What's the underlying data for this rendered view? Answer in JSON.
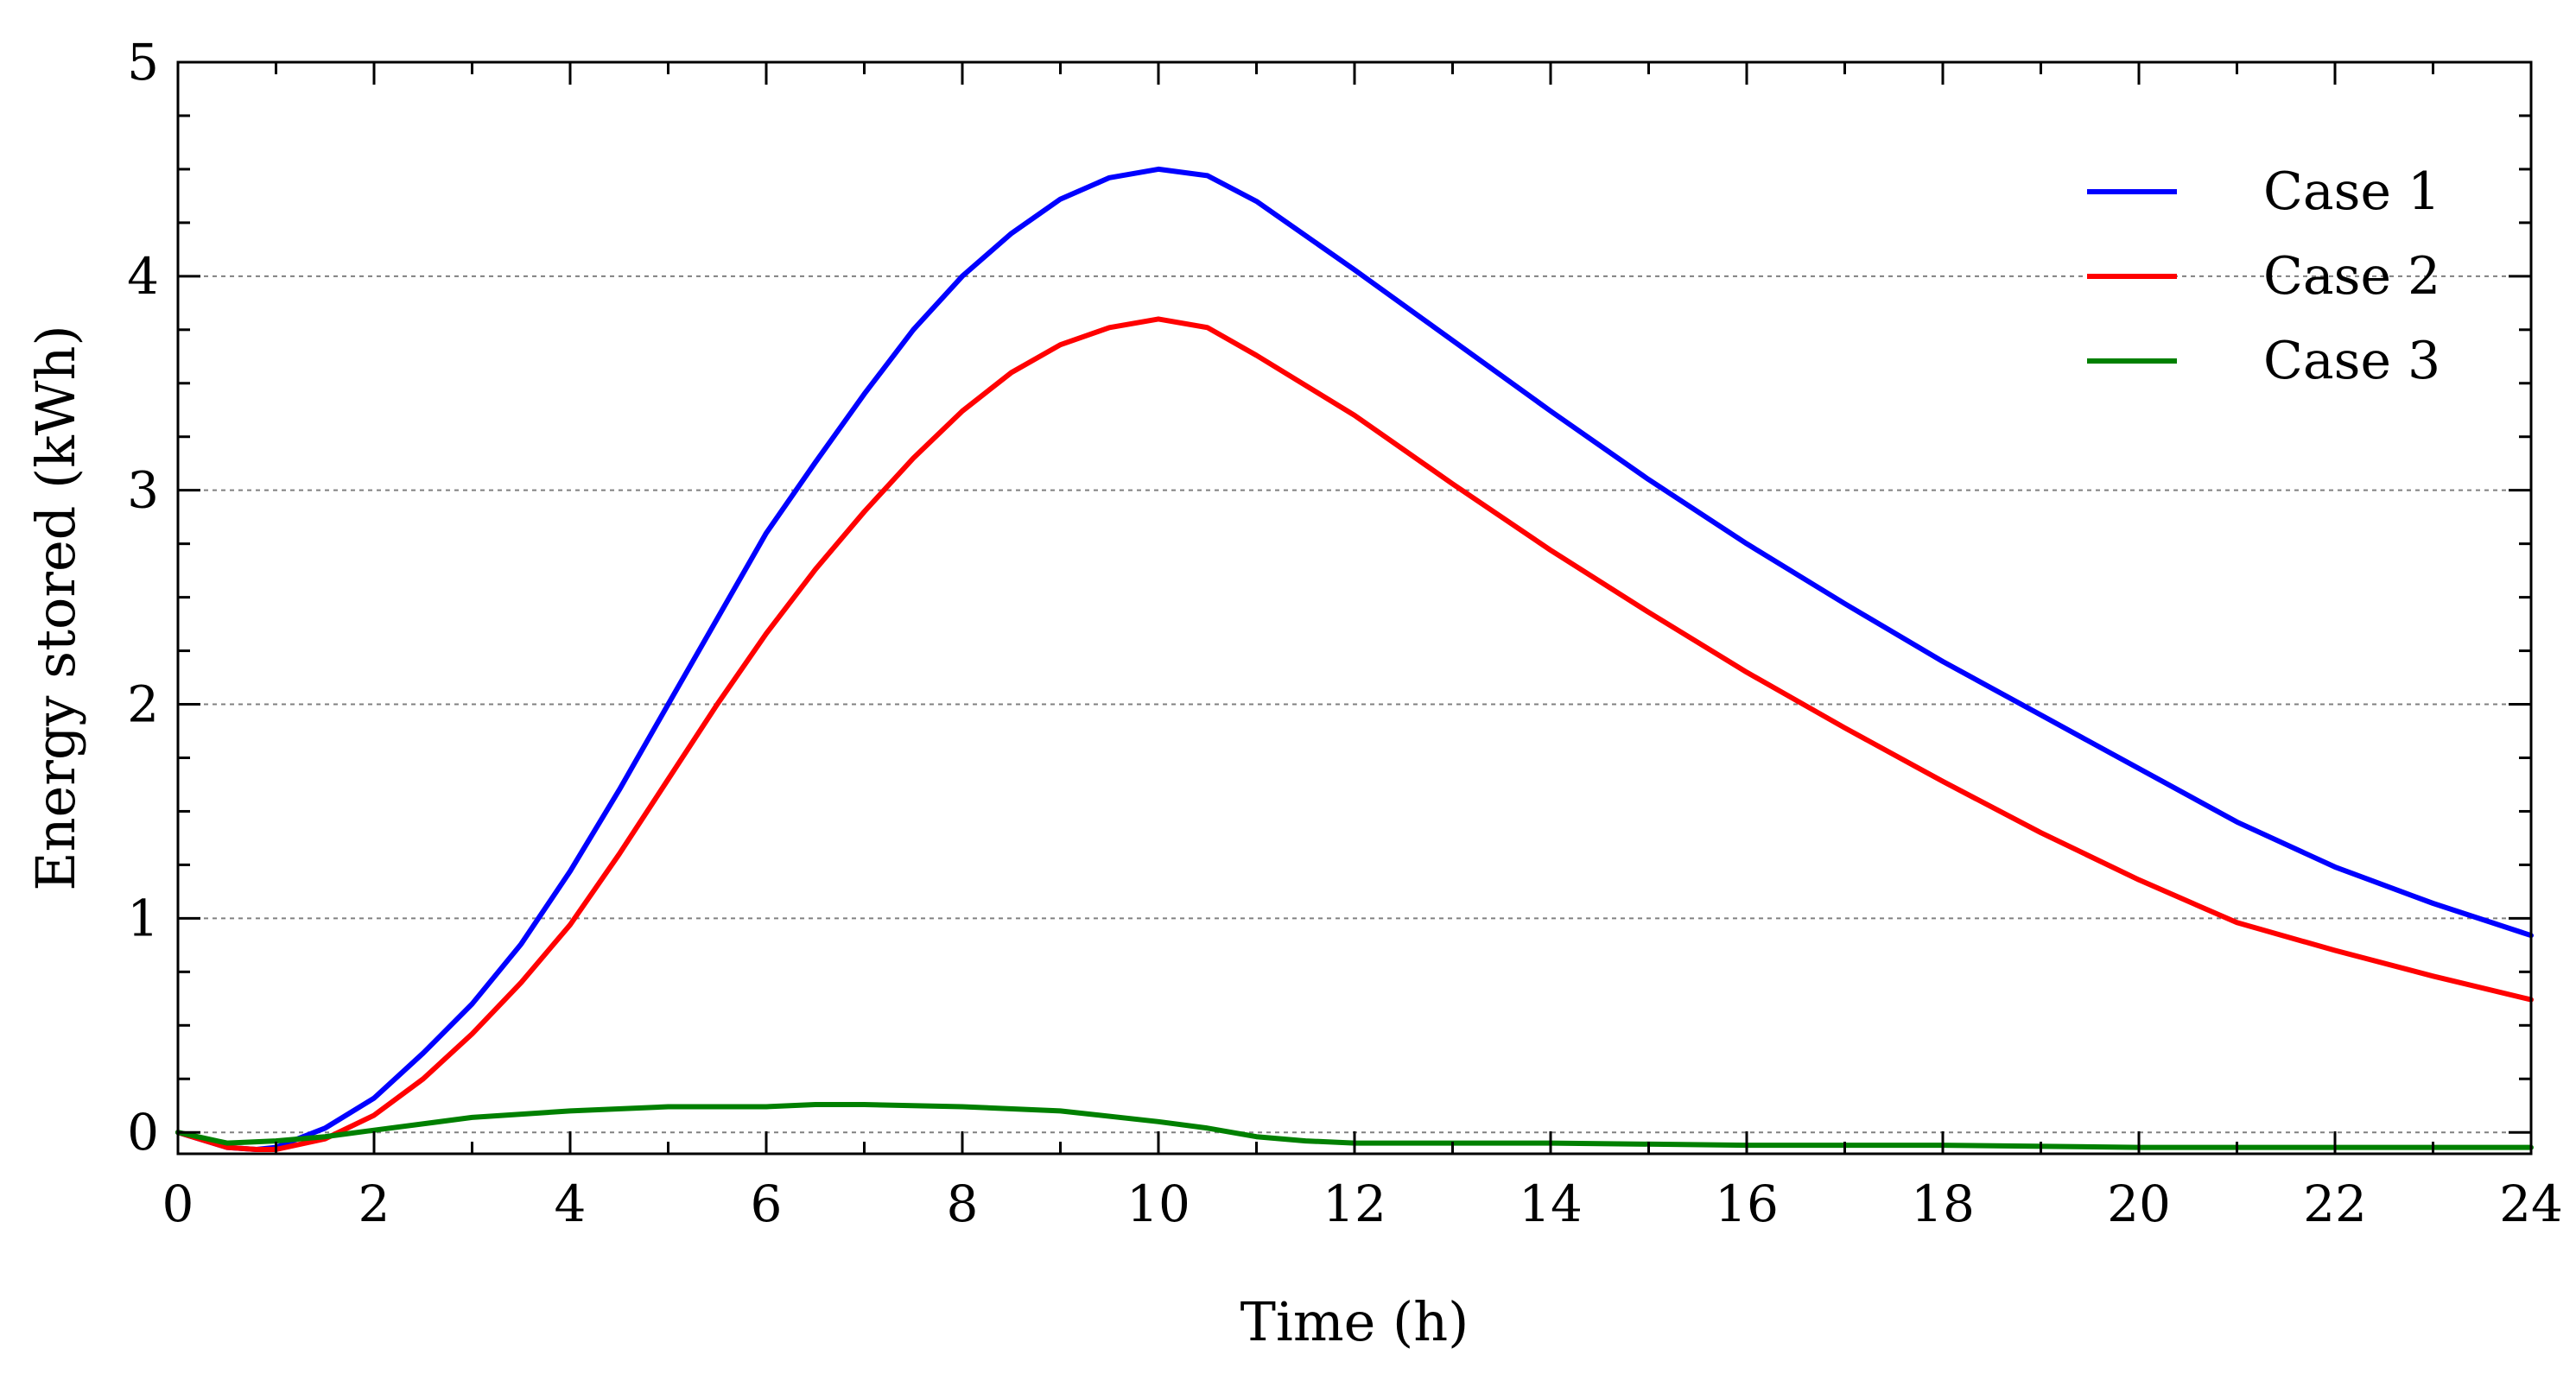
{
  "chart_data": {
    "type": "line",
    "title": "",
    "xlabel": "Time (h)",
    "ylabel": "Energy stored (kWh)",
    "xlim": [
      0,
      24
    ],
    "ylim": [
      -0.1,
      5
    ],
    "xticks": [
      0,
      2,
      4,
      6,
      8,
      10,
      12,
      14,
      16,
      18,
      20,
      22,
      24
    ],
    "yticks": [
      0,
      1,
      2,
      3,
      4,
      5
    ],
    "xtick_labels": [
      "0",
      "2",
      "4",
      "6",
      "8",
      "10",
      "12",
      "14",
      "16",
      "18",
      "20",
      "22",
      "24"
    ],
    "ytick_labels": [
      "0",
      "1",
      "2",
      "3",
      "4",
      "5"
    ],
    "grid": "horizontal dotted",
    "legend_position": "top-right",
    "series": [
      {
        "name": "Case 1",
        "color": "#0000ff",
        "x": [
          0,
          0.5,
          0.8,
          1,
          1.5,
          2,
          2.5,
          3,
          3.5,
          4,
          4.5,
          5,
          5.5,
          6,
          6.5,
          7,
          7.5,
          8,
          8.5,
          9,
          9.5,
          10,
          10.5,
          11,
          12,
          13,
          14,
          15,
          16,
          17,
          18,
          19,
          20,
          21,
          22,
          23,
          24
        ],
        "y": [
          0.0,
          -0.07,
          -0.08,
          -0.07,
          0.02,
          0.16,
          0.37,
          0.6,
          0.88,
          1.22,
          1.6,
          2.0,
          2.4,
          2.8,
          3.13,
          3.45,
          3.75,
          4.0,
          4.2,
          4.36,
          4.46,
          4.5,
          4.47,
          4.35,
          4.03,
          3.7,
          3.37,
          3.05,
          2.75,
          2.47,
          2.2,
          1.95,
          1.7,
          1.45,
          1.24,
          1.07,
          0.92
        ]
      },
      {
        "name": "Case 2",
        "color": "#ff0000",
        "x": [
          0,
          0.5,
          0.8,
          1,
          1.5,
          2,
          2.5,
          3,
          3.5,
          4,
          4.5,
          5,
          5.5,
          6,
          6.5,
          7,
          7.5,
          8,
          8.5,
          9,
          9.5,
          10,
          10.5,
          11,
          12,
          13,
          14,
          15,
          16,
          17,
          18,
          19,
          20,
          21,
          22,
          23,
          24
        ],
        "y": [
          0.0,
          -0.07,
          -0.08,
          -0.08,
          -0.03,
          0.08,
          0.25,
          0.46,
          0.7,
          0.97,
          1.3,
          1.65,
          2.0,
          2.33,
          2.63,
          2.9,
          3.15,
          3.37,
          3.55,
          3.68,
          3.76,
          3.8,
          3.76,
          3.63,
          3.35,
          3.03,
          2.72,
          2.43,
          2.15,
          1.89,
          1.64,
          1.4,
          1.18,
          0.98,
          0.85,
          0.73,
          0.62
        ]
      },
      {
        "name": "Case 3",
        "color": "#008000",
        "x": [
          0,
          0.5,
          1,
          1.5,
          2,
          3,
          4,
          5,
          6,
          6.5,
          7,
          8,
          9,
          10,
          10.5,
          11,
          11.5,
          12,
          14,
          16,
          18,
          20,
          22,
          24
        ],
        "y": [
          0.0,
          -0.05,
          -0.04,
          -0.02,
          0.01,
          0.07,
          0.1,
          0.12,
          0.12,
          0.13,
          0.13,
          0.12,
          0.1,
          0.05,
          0.02,
          -0.02,
          -0.04,
          -0.05,
          -0.05,
          -0.06,
          -0.06,
          -0.07,
          -0.07,
          -0.07
        ]
      }
    ]
  }
}
